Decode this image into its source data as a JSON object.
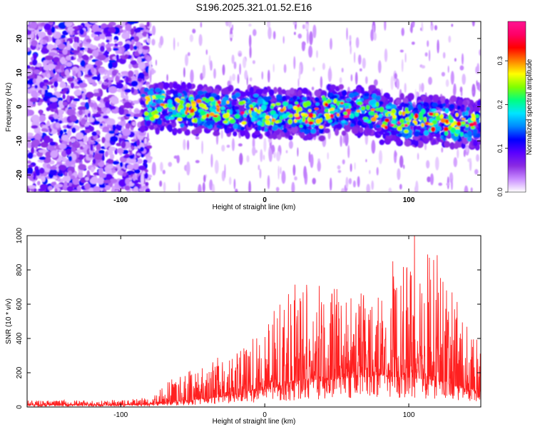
{
  "title": "S196.2025.321.01.52.E16",
  "chart_data": [
    {
      "type": "heatmap",
      "xlabel": "Height of straight line (km)",
      "ylabel": "Frequency (Hz)",
      "xlim": [
        -165,
        150
      ],
      "ylim": [
        -25,
        25
      ],
      "xticks": [
        -100,
        0,
        100
      ],
      "yticks": [
        -20,
        -10,
        0,
        10,
        20
      ],
      "colorbar": {
        "label": "Normalized spectral amplitude",
        "range": [
          0,
          0.39
        ],
        "ticks": [
          0.0,
          0.1,
          0.2,
          0.3
        ],
        "colormap": [
          "#ffffff",
          "#c98cff",
          "#8a2be2",
          "#5a00ff",
          "#0000ff",
          "#0088ff",
          "#00e5ff",
          "#00ff80",
          "#80ff00",
          "#ffff00",
          "#ff8000",
          "#ff0000",
          "#ff0066",
          "#ff1493"
        ]
      },
      "description_of_data": "dense noise speckle for x < -85; for x >= -85 a signal band of width about 12 Hz centred near 0 Hz at x=-80, sloping to about -5 Hz at x=150, with hot spots up to ~0.39"
    },
    {
      "type": "line",
      "xlabel": "Height of straight line (km)",
      "ylabel": "SNR (10 * v/v)",
      "xlim": [
        -165,
        150
      ],
      "ylim": [
        0,
        1000
      ],
      "xticks": [
        -100,
        0,
        100
      ],
      "yticks": [
        0,
        200,
        400,
        600,
        800,
        1000
      ],
      "series_color": "#ff2020",
      "envelope": {
        "x": [
          -165,
          -100,
          -80,
          -60,
          -40,
          -20,
          0,
          20,
          40,
          60,
          80,
          100,
          105,
          120,
          140,
          150
        ],
        "baseline": [
          12,
          12,
          15,
          30,
          50,
          70,
          100,
          130,
          150,
          170,
          180,
          170,
          170,
          150,
          100,
          90
        ],
        "peak": [
          40,
          40,
          60,
          210,
          280,
          310,
          500,
          720,
          720,
          700,
          720,
          840,
          1000,
          900,
          480,
          480
        ]
      },
      "notable_peaks": [
        {
          "x": 104,
          "y": 1000
        },
        {
          "x": 113,
          "y": 890
        },
        {
          "x": 89,
          "y": 850
        }
      ]
    }
  ]
}
